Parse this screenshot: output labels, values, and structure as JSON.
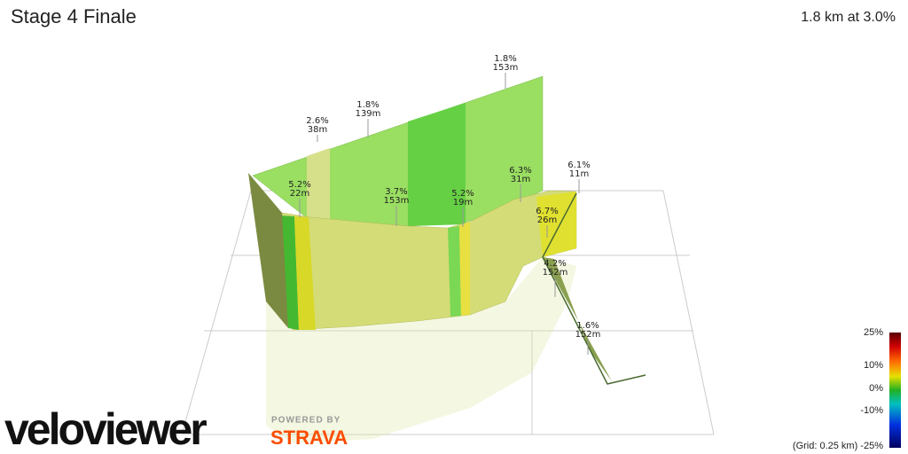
{
  "header": {
    "title": "Stage 4 Finale",
    "summary": "1.8 km at 3.0%"
  },
  "segments": [
    {
      "grade": "2.6%",
      "length": "38m"
    },
    {
      "grade": "1.8%",
      "length": "139m"
    },
    {
      "grade": "1.8%",
      "length": "153m"
    },
    {
      "grade": "5.2%",
      "length": "22m"
    },
    {
      "grade": "3.7%",
      "length": "153m"
    },
    {
      "grade": "5.2%",
      "length": "19m"
    },
    {
      "grade": "6.3%",
      "length": "31m"
    },
    {
      "grade": "6.1%",
      "length": "11m"
    },
    {
      "grade": "6.7%",
      "length": "26m"
    },
    {
      "grade": "4.2%",
      "length": "152m"
    },
    {
      "grade": "1.6%",
      "length": "152m"
    }
  ],
  "scale": {
    "labels": [
      "25%",
      "10%",
      "0%",
      "-10%",
      "(Grid: 0.25 km) -25%"
    ]
  },
  "logo": {
    "brand": "veloviewer",
    "powered": "POWERED BY",
    "partner": "STRAVA"
  }
}
